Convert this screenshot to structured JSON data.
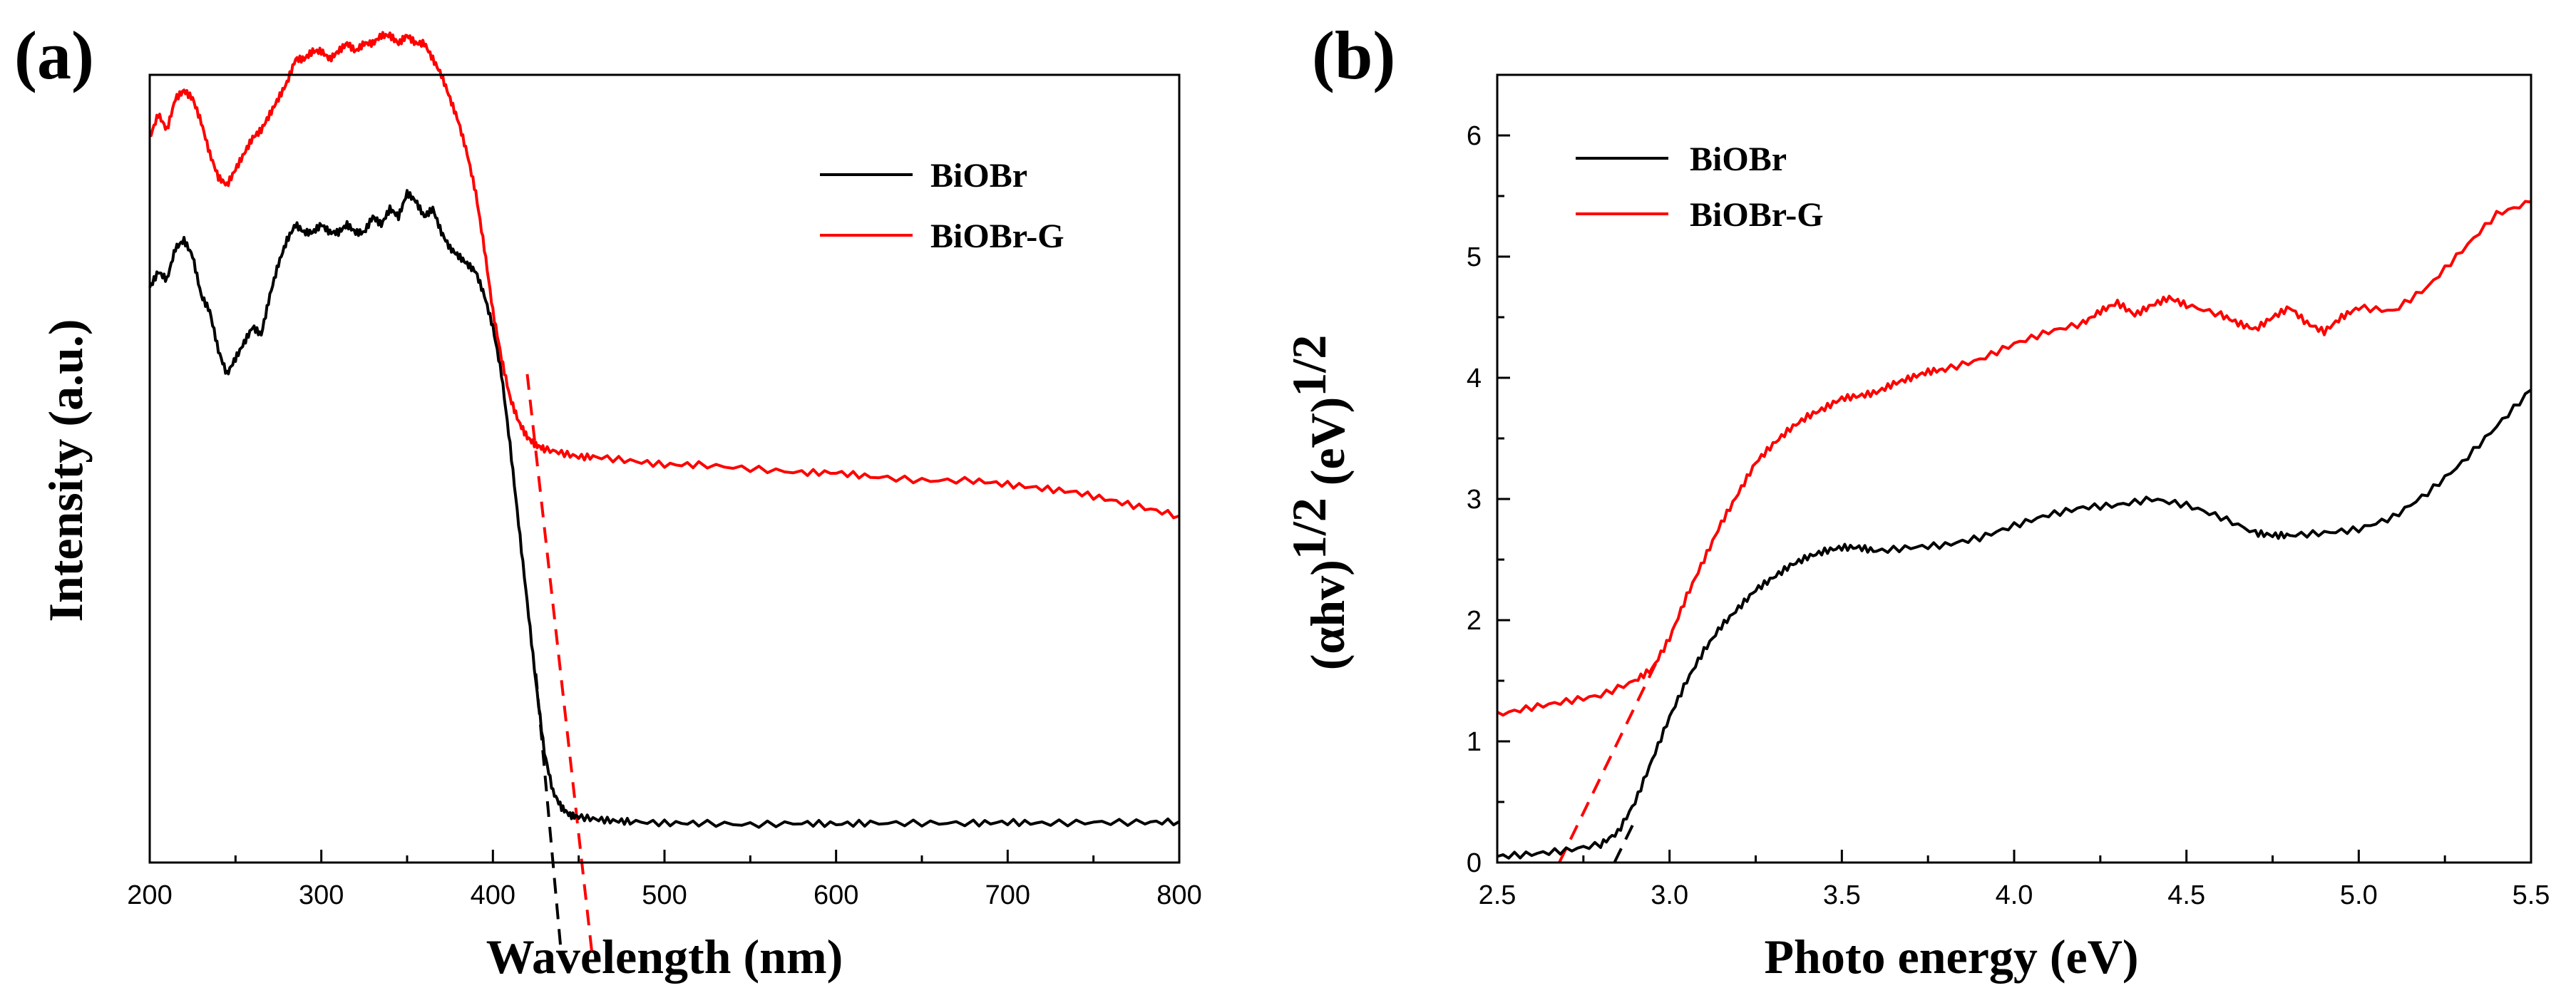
{
  "chart_data": [
    {
      "type": "line",
      "panel_label": "(a)",
      "xlabel": "Wavelength (nm)",
      "ylabel": "Intensity (a.u.)",
      "xlim": [
        200,
        800
      ],
      "ylim": [
        0,
        100
      ],
      "xticks": [
        200,
        300,
        400,
        500,
        600,
        700,
        800
      ],
      "xtick_labels": [
        "200",
        "300",
        "400",
        "500",
        "600",
        "700",
        "800"
      ],
      "yticks_labeled": false,
      "legend_position": "top-right",
      "series": [
        {
          "name": "BiOBr",
          "color": "#000000",
          "x": [
            200,
            205,
            210,
            215,
            220,
            225,
            230,
            235,
            240,
            245,
            250,
            255,
            260,
            265,
            270,
            275,
            280,
            285,
            290,
            295,
            300,
            305,
            310,
            315,
            320,
            325,
            330,
            335,
            340,
            345,
            350,
            355,
            360,
            365,
            370,
            375,
            380,
            385,
            390,
            395,
            400,
            405,
            410,
            415,
            420,
            425,
            430,
            435,
            440,
            445,
            450,
            460,
            470,
            480,
            500,
            520,
            550,
            580,
            600,
            620,
            650,
            680,
            700,
            720,
            750,
            780,
            800
          ],
          "y": [
            73,
            75,
            74,
            78,
            79,
            77,
            72,
            70,
            65,
            62,
            64,
            66,
            68,
            67,
            72,
            76,
            79,
            81,
            80,
            80,
            81,
            80,
            80,
            81,
            80,
            80,
            82,
            81,
            83,
            82,
            85,
            84,
            82,
            83,
            80,
            78,
            77,
            76,
            75,
            72,
            68,
            62,
            53,
            43,
            33,
            23,
            14,
            9,
            7,
            6,
            5.8,
            5.5,
            5.3,
            5.2,
            5,
            5,
            4.8,
            5,
            4.9,
            5,
            5,
            5,
            5.1,
            5,
            5.1,
            5.1,
            5.2
          ]
        },
        {
          "name": "BiOBr-G",
          "color": "#ff0000",
          "x": [
            200,
            205,
            210,
            215,
            220,
            225,
            230,
            235,
            240,
            245,
            250,
            255,
            260,
            265,
            270,
            275,
            280,
            285,
            290,
            295,
            300,
            305,
            310,
            315,
            320,
            325,
            330,
            335,
            340,
            345,
            350,
            355,
            360,
            365,
            370,
            375,
            380,
            385,
            390,
            395,
            400,
            405,
            410,
            415,
            420,
            425,
            430,
            440,
            450,
            460,
            480,
            500,
            520,
            550,
            580,
            600,
            620,
            650,
            680,
            700,
            720,
            740,
            760,
            780,
            800
          ],
          "y": [
            92,
            95,
            93,
            97,
            98,
            97,
            94,
            90,
            87,
            86,
            88,
            90,
            92,
            93,
            95,
            97,
            99,
            102,
            102,
            103,
            103,
            102,
            103,
            104,
            103,
            104,
            104,
            105,
            105,
            104,
            105,
            104,
            104,
            102,
            100,
            97,
            94,
            90,
            85,
            78,
            70,
            64,
            59,
            56,
            54,
            53,
            52.5,
            52,
            51.5,
            51.5,
            51,
            50.5,
            50.5,
            50,
            49.5,
            49.5,
            49,
            48.5,
            48.5,
            48,
            47.5,
            47,
            46,
            45,
            44
          ]
        }
      ],
      "annotations": [
        {
          "type": "dashed-tangent",
          "color": "#000000",
          "x": [
            425,
            440
          ],
          "y": [
            24,
            -12
          ]
        },
        {
          "type": "dashed-tangent",
          "color": "#ff0000",
          "x": [
            420,
            458
          ],
          "y": [
            62,
            -12
          ]
        }
      ]
    },
    {
      "type": "line",
      "panel_label": "(b)",
      "xlabel": "Photo energy (eV)",
      "ylabel": "(αhν)1/2 (eV)1/2",
      "ylabel_parts": [
        "(αhv)",
        "1/2",
        " (eV)",
        "1/2"
      ],
      "xlim": [
        2.5,
        5.5
      ],
      "ylim": [
        0,
        6.5
      ],
      "xticks": [
        2.5,
        3.0,
        3.5,
        4.0,
        4.5,
        5.0,
        5.5
      ],
      "xtick_labels": [
        "2.5",
        "3.0",
        "3.5",
        "4.0",
        "4.5",
        "5.0",
        "5.5"
      ],
      "yticks": [
        0,
        1,
        2,
        3,
        4,
        5,
        6
      ],
      "ytick_labels": [
        "0",
        "1",
        "2",
        "3",
        "4",
        "5",
        "6"
      ],
      "legend_position": "top-left",
      "series": [
        {
          "name": "BiOBr",
          "color": "#000000",
          "x": [
            2.5,
            2.6,
            2.7,
            2.8,
            2.85,
            2.9,
            2.95,
            3.0,
            3.05,
            3.1,
            3.15,
            3.2,
            3.25,
            3.3,
            3.35,
            3.4,
            3.45,
            3.5,
            3.55,
            3.6,
            3.7,
            3.8,
            3.9,
            4.0,
            4.1,
            4.2,
            4.3,
            4.4,
            4.5,
            4.6,
            4.7,
            4.75,
            4.8,
            4.9,
            5.0,
            5.1,
            5.2,
            5.3,
            5.4,
            5.5
          ],
          "y": [
            0.05,
            0.07,
            0.1,
            0.15,
            0.25,
            0.5,
            0.85,
            1.2,
            1.5,
            1.75,
            1.95,
            2.1,
            2.25,
            2.35,
            2.45,
            2.52,
            2.57,
            2.6,
            2.6,
            2.57,
            2.6,
            2.62,
            2.68,
            2.78,
            2.87,
            2.93,
            2.95,
            3.0,
            2.95,
            2.85,
            2.72,
            2.7,
            2.7,
            2.72,
            2.75,
            2.85,
            3.05,
            3.3,
            3.6,
            3.9
          ]
        },
        {
          "name": "BiOBr-G",
          "color": "#ff0000",
          "x": [
            2.5,
            2.6,
            2.7,
            2.8,
            2.9,
            2.95,
            3.0,
            3.05,
            3.1,
            3.15,
            3.2,
            3.25,
            3.3,
            3.35,
            3.4,
            3.45,
            3.5,
            3.55,
            3.6,
            3.65,
            3.7,
            3.75,
            3.8,
            3.9,
            4.0,
            4.1,
            4.2,
            4.25,
            4.3,
            4.35,
            4.4,
            4.45,
            4.5,
            4.6,
            4.65,
            4.7,
            4.75,
            4.8,
            4.85,
            4.9,
            4.95,
            5.0,
            5.1,
            5.2,
            5.3,
            5.4,
            5.5
          ],
          "y": [
            1.22,
            1.28,
            1.33,
            1.38,
            1.5,
            1.6,
            1.85,
            2.2,
            2.5,
            2.8,
            3.05,
            3.3,
            3.45,
            3.58,
            3.68,
            3.75,
            3.83,
            3.85,
            3.88,
            3.95,
            4.0,
            4.05,
            4.07,
            4.15,
            4.28,
            4.38,
            4.45,
            4.55,
            4.62,
            4.52,
            4.6,
            4.66,
            4.6,
            4.52,
            4.45,
            4.4,
            4.5,
            4.58,
            4.45,
            4.38,
            4.5,
            4.58,
            4.55,
            4.75,
            5.05,
            5.35,
            5.45
          ]
        }
      ],
      "annotations": [
        {
          "type": "dashed-tangent",
          "color": "#ff0000",
          "x": [
            2.68,
            2.97
          ],
          "y": [
            0,
            1.7
          ]
        },
        {
          "type": "dashed-tangent",
          "color": "#000000",
          "x": [
            2.84,
            2.9
          ],
          "y": [
            0,
            0.35
          ]
        }
      ]
    }
  ]
}
